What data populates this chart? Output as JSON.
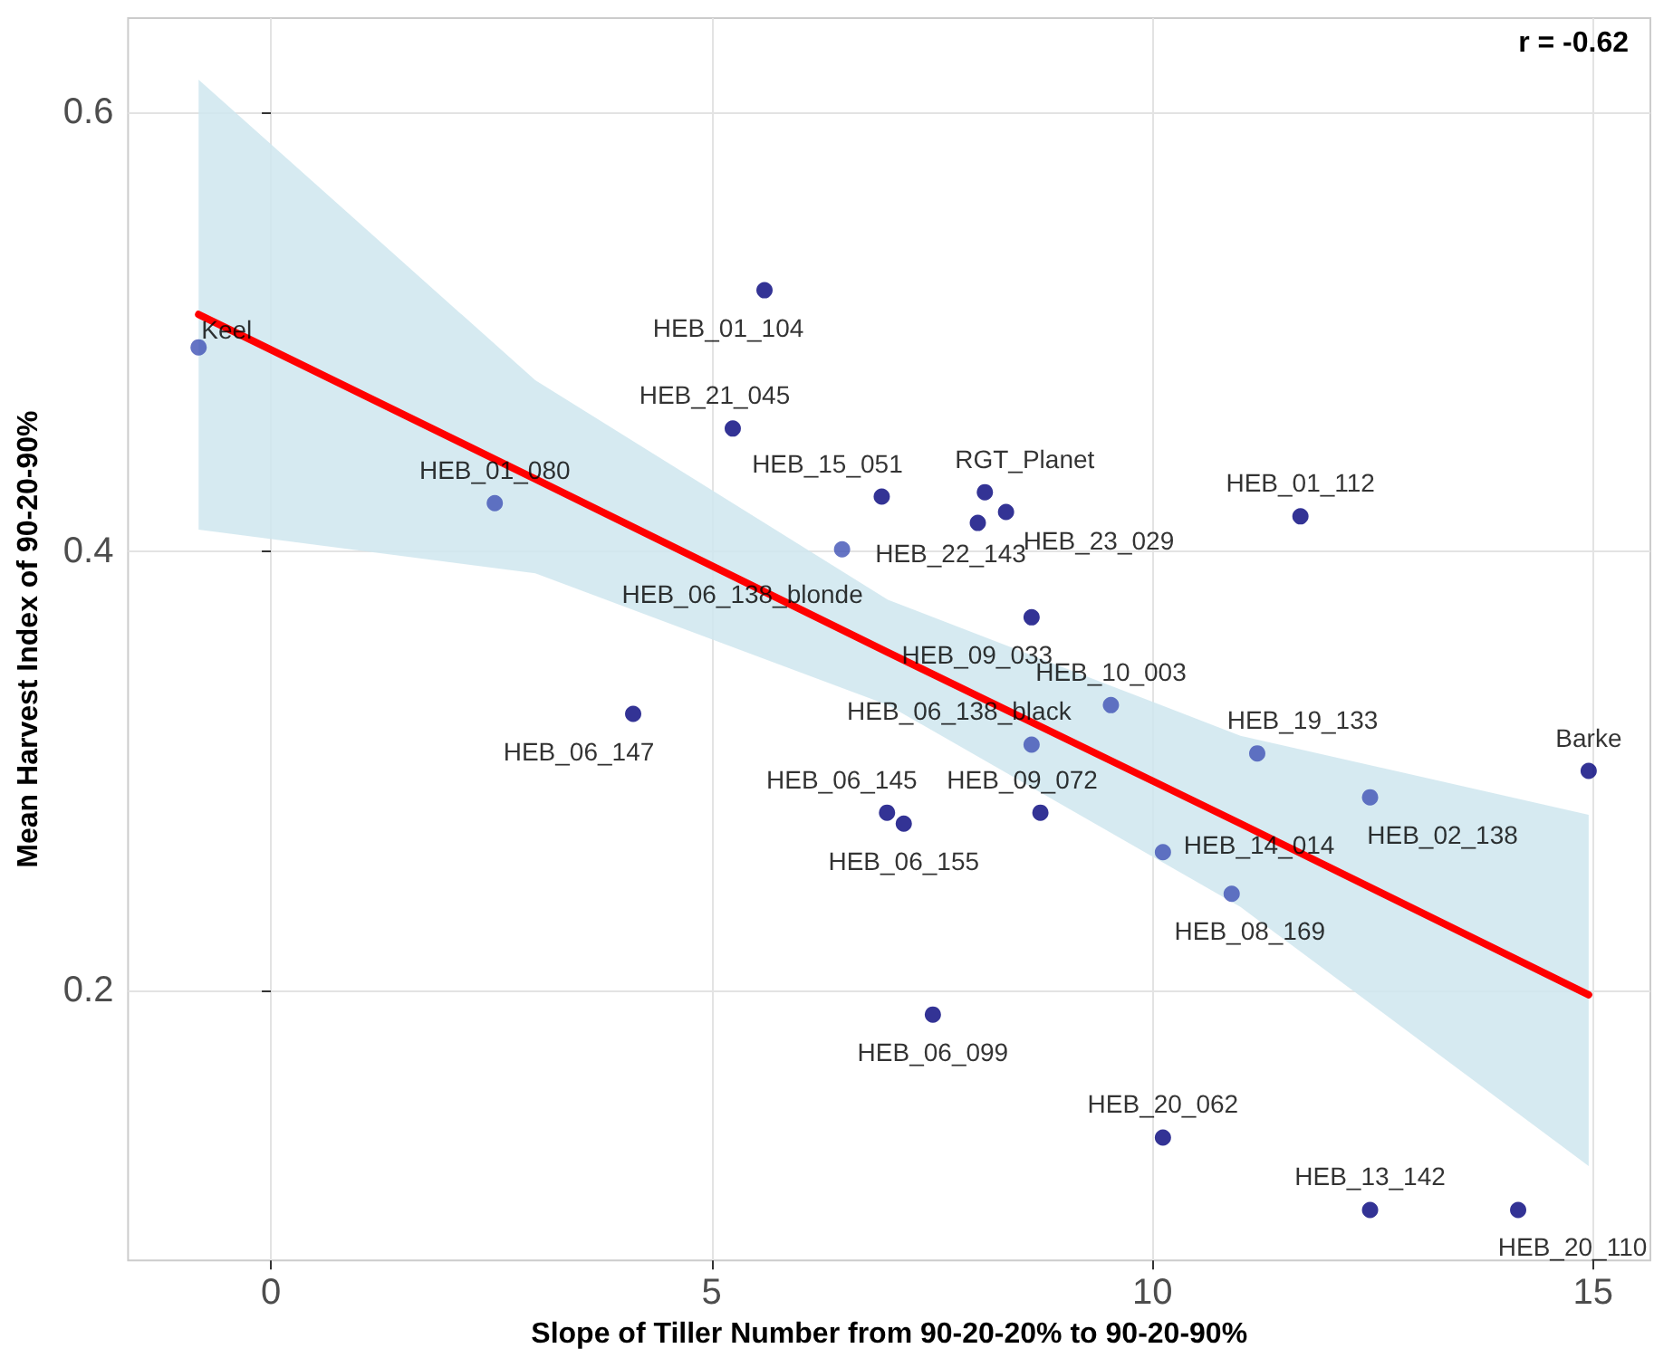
{
  "chart_data": {
    "type": "scatter",
    "xlabel": "Slope of Tiller Number from 90-20-20% to 90-20-90%",
    "ylabel": "Mean Harvest Index of 90-20-90%",
    "annotations": [
      "r = -0.62"
    ],
    "xlim": [
      -1.62,
      15.65
    ],
    "ylim": [
      0.077,
      0.643
    ],
    "xticks": [
      0,
      5,
      10,
      15
    ],
    "yticks": [
      0.2,
      0.4,
      0.6
    ],
    "grid": true,
    "marker": "circle",
    "series": [
      {
        "x": [
          -0.82,
          2.54,
          4.11,
          5.24,
          5.6,
          6.93,
          6.48,
          6.99,
          7.18,
          7.51,
          8.1,
          8.02,
          8.34,
          8.63,
          8.63,
          8.73,
          9.53,
          10.12,
          10.12,
          10.9,
          11.19,
          11.68,
          12.47,
          12.47,
          14.15,
          14.95
        ],
        "values": [
          0.493,
          0.422,
          0.326,
          0.456,
          0.519,
          0.425,
          0.401,
          0.281,
          0.276,
          0.189,
          0.427,
          0.413,
          0.418,
          0.37,
          0.312,
          0.281,
          0.33,
          0.263,
          0.133,
          0.244,
          0.308,
          0.416,
          0.288,
          0.1,
          0.1,
          0.3
        ],
        "colors": [
          "#3f51b5",
          "#3f51b5",
          "#00007a",
          "#00007a",
          "#00007a",
          "#00007a",
          "#3f51b5",
          "#00007a",
          "#00007a",
          "#00007a",
          "#00007a",
          "#00007a",
          "#00007a",
          "#00007a",
          "#3f51b5",
          "#00007a",
          "#3f51b5",
          "#3f51b5",
          "#00007a",
          "#3f51b5",
          "#3f51b5",
          "#00007a",
          "#3f51b5",
          "#00007a",
          "#00007a",
          "#00007a"
        ],
        "value_labels": [
          "Keel",
          "HEB_01_080",
          "HEB_06_147",
          "HEB_21_045",
          "HEB_01_104",
          "HEB_15_051",
          "HEB_06_138_blonde",
          "HEB_06_145",
          "HEB_06_155",
          "HEB_06_099",
          "RGT_Planet",
          "HEB_22_143",
          "HEB_23_029",
          "HEB_09_033",
          "HEB_06_138_black",
          "HEB_09_072",
          "HEB_10_003",
          "HEB_14_014",
          "HEB_20_062",
          "HEB_08_169",
          "HEB_19_133",
          "HEB_01_112",
          "HEB_02_138",
          "HEB_13_142",
          "HEB_20_110",
          "Barke"
        ]
      },
      {
        "type": "line",
        "color": "#ff0000",
        "marker": "none",
        "x": [
          -0.82,
          3,
          7,
          11,
          14.95
        ],
        "values": [
          0.508,
          0.433,
          0.354,
          0.276,
          0.198
        ],
        "lower": [
          0.41,
          0.39,
          0.33,
          0.238,
          0.12
        ],
        "upper": [
          0.615,
          0.478,
          0.378,
          0.316,
          0.28
        ]
      }
    ]
  }
}
